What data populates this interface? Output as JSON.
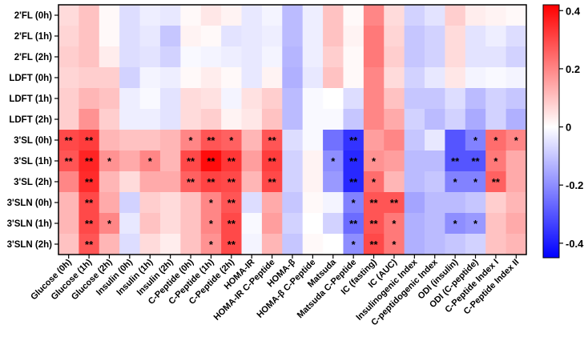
{
  "chart_data": {
    "type": "heatmap",
    "title": "",
    "rows": [
      "2'FL (0h)",
      "2'FL (1h)",
      "2'FL (2h)",
      "LDFT (0h)",
      "LDFT (1h)",
      "LDFT (2h)",
      "3'SL (0h)",
      "3'SL (1h)",
      "3'SL (2h)",
      "3'SLN (0h)",
      "3'SLN (1h)",
      "3'SLN (2h)"
    ],
    "columns": [
      "Glucose (0h)",
      "Glucose (1h)",
      "Glucose (2h)",
      "Insulin (0h)",
      "Insulin (1h)",
      "Insulin (2h)",
      "C-Peptide (0h)",
      "C-Peptide (1h)",
      "C-Peptide (2h)",
      "HOMA-IR",
      "HOMA-IR C-Peptide",
      "HOMA-β",
      "HOMA-β C-Peptide",
      "Matsuda",
      "Matsuda C-Peptide",
      "IC (fasting)",
      "IC (AUC)",
      "Insulinogenic Index",
      "C-peptidogenic Index",
      "ODI (insulin)",
      "ODI (C-peptide)",
      "C-Peptide Index I",
      "C-Peptide Index II"
    ],
    "values": [
      [
        0.06,
        0.1,
        0.01,
        -0.06,
        -0.03,
        -0.04,
        0.01,
        0.04,
        0.02,
        -0.04,
        -0.02,
        -0.12,
        -0.03,
        0.1,
        0.01,
        0.2,
        0.06,
        -0.08,
        -0.05,
        0.08,
        0.03,
        0.02,
        0.01
      ],
      [
        0.07,
        0.1,
        0.01,
        -0.06,
        -0.04,
        -0.1,
        0.02,
        0.01,
        -0.05,
        -0.04,
        -0.03,
        -0.12,
        -0.03,
        0.1,
        0.02,
        0.22,
        0.07,
        -0.1,
        -0.08,
        0.06,
        -0.05,
        -0.03,
        -0.06
      ],
      [
        0.08,
        0.1,
        0.03,
        -0.06,
        -0.05,
        -0.08,
        -0.01,
        -0.02,
        -0.03,
        -0.04,
        -0.02,
        -0.13,
        -0.03,
        0.08,
        0.01,
        0.22,
        0.08,
        -0.1,
        -0.08,
        0.06,
        -0.05,
        -0.05,
        -0.08
      ],
      [
        0.07,
        0.08,
        0.08,
        -0.08,
        -0.02,
        -0.03,
        0.01,
        0.03,
        0.01,
        -0.04,
        0.02,
        -0.14,
        -0.04,
        0.1,
        0.01,
        0.2,
        0.06,
        -0.08,
        -0.04,
        0.04,
        -0.02,
        -0.01,
        -0.02
      ],
      [
        0.08,
        0.12,
        0.1,
        -0.03,
        -0.01,
        -0.05,
        0.06,
        0.05,
        -0.02,
        0.05,
        0.08,
        -0.12,
        -0.01,
        0.0,
        -0.06,
        0.2,
        0.1,
        -0.1,
        -0.1,
        -0.06,
        -0.12,
        -0.08,
        -0.1
      ],
      [
        0.08,
        0.18,
        0.08,
        -0.03,
        -0.03,
        -0.05,
        0.06,
        0.08,
        0.02,
        0.04,
        0.1,
        -0.12,
        -0.01,
        -0.01,
        -0.1,
        0.2,
        0.14,
        -0.08,
        -0.12,
        -0.08,
        -0.15,
        -0.08,
        -0.14
      ],
      [
        0.3,
        0.32,
        0.12,
        0.1,
        0.1,
        0.12,
        0.2,
        0.28,
        0.26,
        0.12,
        0.28,
        -0.06,
        -0.01,
        -0.25,
        -0.36,
        0.16,
        0.2,
        -0.1,
        -0.04,
        -0.3,
        -0.22,
        0.24,
        0.2
      ],
      [
        0.28,
        0.36,
        0.18,
        0.14,
        0.2,
        0.12,
        0.3,
        0.4,
        0.33,
        0.16,
        0.32,
        -0.08,
        0.02,
        -0.2,
        -0.38,
        0.18,
        0.16,
        -0.12,
        -0.12,
        -0.3,
        -0.3,
        0.22,
        0.14
      ],
      [
        0.2,
        0.35,
        0.12,
        0.06,
        0.14,
        0.14,
        0.26,
        0.31,
        0.3,
        0.12,
        0.3,
        -0.08,
        0.02,
        -0.18,
        -0.38,
        0.24,
        0.12,
        -0.12,
        -0.1,
        -0.22,
        -0.22,
        0.26,
        0.14
      ],
      [
        0.12,
        0.3,
        0.14,
        -0.08,
        0.08,
        0.06,
        0.1,
        0.2,
        0.28,
        -0.06,
        0.14,
        -0.1,
        0.01,
        -0.02,
        -0.22,
        0.28,
        0.28,
        -0.16,
        -0.12,
        -0.12,
        -0.1,
        0.08,
        0.12
      ],
      [
        0.12,
        0.3,
        0.2,
        -0.04,
        0.1,
        0.06,
        0.1,
        0.2,
        0.3,
        -0.01,
        0.16,
        -0.08,
        0.0,
        -0.08,
        -0.26,
        0.28,
        0.22,
        -0.14,
        -0.12,
        -0.2,
        -0.18,
        0.1,
        0.14
      ],
      [
        0.1,
        0.28,
        0.12,
        -0.06,
        0.06,
        0.03,
        0.1,
        0.18,
        0.3,
        -0.02,
        0.12,
        -0.1,
        0.01,
        0.0,
        -0.2,
        0.3,
        0.22,
        -0.14,
        -0.12,
        -0.1,
        -0.08,
        0.1,
        0.12
      ]
    ],
    "significance": [
      [
        "",
        "",
        "",
        "",
        "",
        "",
        "",
        "",
        "",
        "",
        "",
        "",
        "",
        "",
        "",
        "",
        "",
        "",
        "",
        "",
        "",
        "",
        ""
      ],
      [
        "",
        "",
        "",
        "",
        "",
        "",
        "",
        "",
        "",
        "",
        "",
        "",
        "",
        "",
        "",
        "",
        "",
        "",
        "",
        "",
        "",
        "",
        ""
      ],
      [
        "",
        "",
        "",
        "",
        "",
        "",
        "",
        "",
        "",
        "",
        "",
        "",
        "",
        "",
        "",
        "",
        "",
        "",
        "",
        "",
        "",
        "",
        ""
      ],
      [
        "",
        "",
        "",
        "",
        "",
        "",
        "",
        "",
        "",
        "",
        "",
        "",
        "",
        "",
        "",
        "",
        "",
        "",
        "",
        "",
        "",
        "",
        ""
      ],
      [
        "",
        "",
        "",
        "",
        "",
        "",
        "",
        "",
        "",
        "",
        "",
        "",
        "",
        "",
        "",
        "",
        "",
        "",
        "",
        "",
        "",
        "",
        ""
      ],
      [
        "",
        "",
        "",
        "",
        "",
        "",
        "",
        "",
        "",
        "",
        "",
        "",
        "",
        "",
        "",
        "",
        "",
        "",
        "",
        "",
        "",
        "",
        ""
      ],
      [
        "**",
        "**",
        "",
        "",
        "",
        "",
        "*",
        "**",
        "*",
        "",
        "**",
        "",
        "",
        "",
        "**",
        "",
        "",
        "",
        "",
        "",
        "*",
        "*",
        "*"
      ],
      [
        "**",
        "**",
        "*",
        "",
        "*",
        "",
        "**",
        "**",
        "**",
        "",
        "**",
        "",
        "",
        "*",
        "**",
        "*",
        "",
        "",
        "",
        "**",
        "**",
        "*",
        ""
      ],
      [
        "",
        "**",
        "",
        "",
        "",
        "",
        "**",
        "**",
        "**",
        "",
        "**",
        "",
        "",
        "",
        "**",
        "*",
        "",
        "",
        "",
        "*",
        "*",
        "**",
        ""
      ],
      [
        "",
        "**",
        "",
        "",
        "",
        "",
        "",
        "*",
        "**",
        "",
        "",
        "",
        "",
        "",
        "*",
        "**",
        "**",
        "",
        "",
        "",
        "",
        "",
        ""
      ],
      [
        "",
        "**",
        "*",
        "",
        "",
        "",
        "",
        "*",
        "**",
        "",
        "",
        "",
        "",
        "",
        "**",
        "**",
        "*",
        "",
        "",
        "*",
        "*",
        "",
        ""
      ],
      [
        "",
        "**",
        "",
        "",
        "",
        "",
        "",
        "*",
        "**",
        "",
        "",
        "",
        "",
        "",
        "*",
        "**",
        "*",
        "",
        "",
        "",
        "",
        "",
        ""
      ]
    ],
    "colorbar": {
      "min": -0.45,
      "max": 0.42,
      "ticks": [
        0.4,
        0.2,
        0,
        -0.2,
        -0.4
      ],
      "tick_labels": [
        "0.4",
        "0.2",
        "0",
        "-0.2",
        "-0.4"
      ],
      "colors": {
        "negative": "#0000ff",
        "zero": "#ffffff",
        "positive": "#ff0000"
      }
    }
  }
}
